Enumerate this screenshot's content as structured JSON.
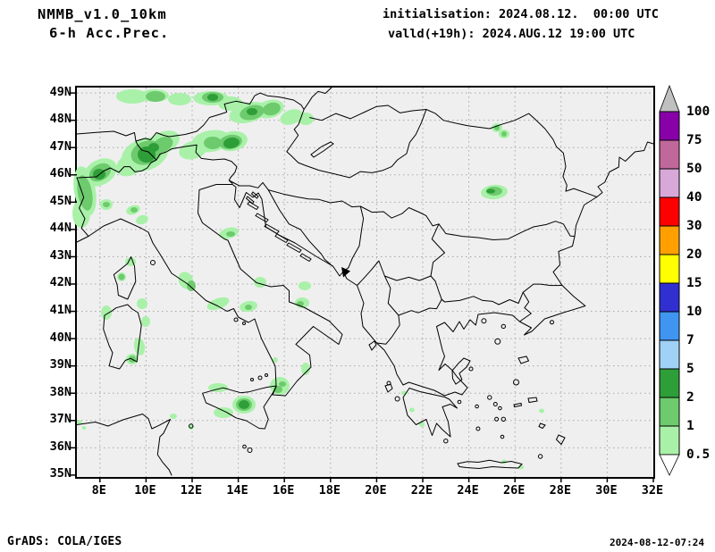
{
  "header": {
    "model": "NMMB_v1.0_10km",
    "product": "6-h Acc.Prec.",
    "init_line": "initialisation: 2024.08.12.  00:00 UTC",
    "valid_line": "valld(+19h): 2024.AUG.12 19:00 UTC"
  },
  "axes": {
    "lat_labels": [
      "49N",
      "48N",
      "47N",
      "46N",
      "45N",
      "44N",
      "43N",
      "42N",
      "41N",
      "40N",
      "39N",
      "38N",
      "37N",
      "36N",
      "35N"
    ],
    "lon_labels": [
      "8E",
      "10E",
      "12E",
      "14E",
      "16E",
      "18E",
      "20E",
      "22E",
      "24E",
      "26E",
      "28E",
      "30E",
      "32E"
    ]
  },
  "map": {
    "background": "#efefef",
    "coastline_color": "#000000",
    "grid_color": "#a8a8a8",
    "marker_icon": "station-triangle-marker"
  },
  "colorbar": {
    "over_color": "#c0c0c0",
    "under_color": "#ffffff",
    "bottom_label": "0.5",
    "cells": [
      {
        "label": "100",
        "color": "#8800a8"
      },
      {
        "label": "75",
        "color": "#c0689c"
      },
      {
        "label": "50",
        "color": "#d8a8d8"
      },
      {
        "label": "40",
        "color": "#ff0000"
      },
      {
        "label": "30",
        "color": "#ffa000"
      },
      {
        "label": "20",
        "color": "#ffff00"
      },
      {
        "label": "15",
        "color": "#3030d0"
      },
      {
        "label": "10",
        "color": "#3f95f0"
      },
      {
        "label": "7",
        "color": "#a0d2f8"
      },
      {
        "label": "5",
        "color": "#2e9e38"
      },
      {
        "label": "2",
        "color": "#6dca6d"
      },
      {
        "label": "1",
        "color": "#a9f1a9"
      }
    ]
  },
  "footer": {
    "credit": "GrADS: COLA/IGES",
    "timestamp": "2024-08-12-07:24"
  }
}
